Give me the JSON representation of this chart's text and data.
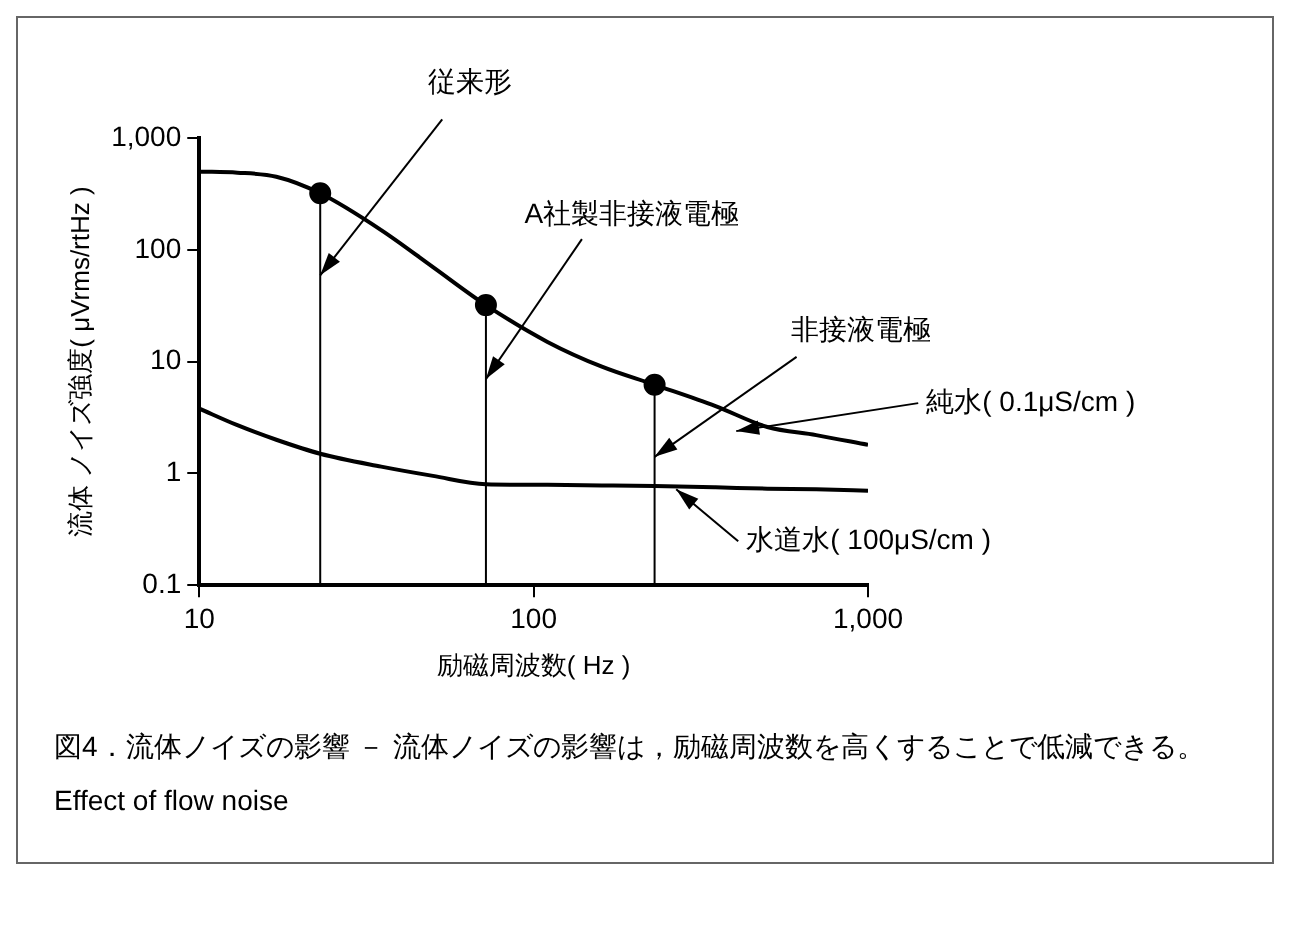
{
  "chart_data": {
    "type": "line",
    "xlabel": "励磁周波数( Hz )",
    "ylabel": "流体 ノイズ強度( μVrms/rtHz )",
    "log": "xy",
    "xlim": [
      10,
      1000
    ],
    "ylim": [
      0.1,
      1000
    ],
    "xticks": [
      10,
      100,
      {
        "value": 1000,
        "label": "1,000"
      }
    ],
    "yticks": [
      0.1,
      1,
      10,
      100,
      {
        "value": 1000,
        "label": "1,000"
      }
    ],
    "grid": false,
    "legend": false,
    "marker": "none",
    "line_style": "solid",
    "series": [
      {
        "name": "純水( 0.1μS/cm )",
        "color": "#000000",
        "x": [
          10,
          13,
          17,
          23,
          35,
          50,
          72,
          110,
          160,
          230,
          350,
          500,
          700,
          1000
        ],
        "values": [
          500,
          490,
          450,
          320,
          150,
          70,
          32,
          15,
          9,
          6.2,
          4,
          2.6,
          2.2,
          1.8
        ]
      },
      {
        "name": "水道水( 100μS/cm )",
        "color": "#000000",
        "x": [
          10,
          13,
          17,
          23,
          35,
          50,
          72,
          110,
          160,
          230,
          350,
          500,
          700,
          1000
        ],
        "values": [
          3.8,
          2.7,
          2,
          1.5,
          1.15,
          0.95,
          0.8,
          0.79,
          0.78,
          0.77,
          0.75,
          0.73,
          0.72,
          0.7
        ]
      },
      {
        "type": "lollipop",
        "color": "#000000",
        "marker": "circle",
        "x": [
          23,
          72,
          230
        ],
        "values": [
          320,
          32,
          6.2
        ]
      }
    ],
    "annotations": [
      "従来形",
      "A社製非接液電極",
      "非接液電極",
      "図4．流体ノイズの影響 － 流体ノイズの影響は，励磁周波数を高くすることで低減できる。",
      "Effect of flow noise"
    ]
  }
}
